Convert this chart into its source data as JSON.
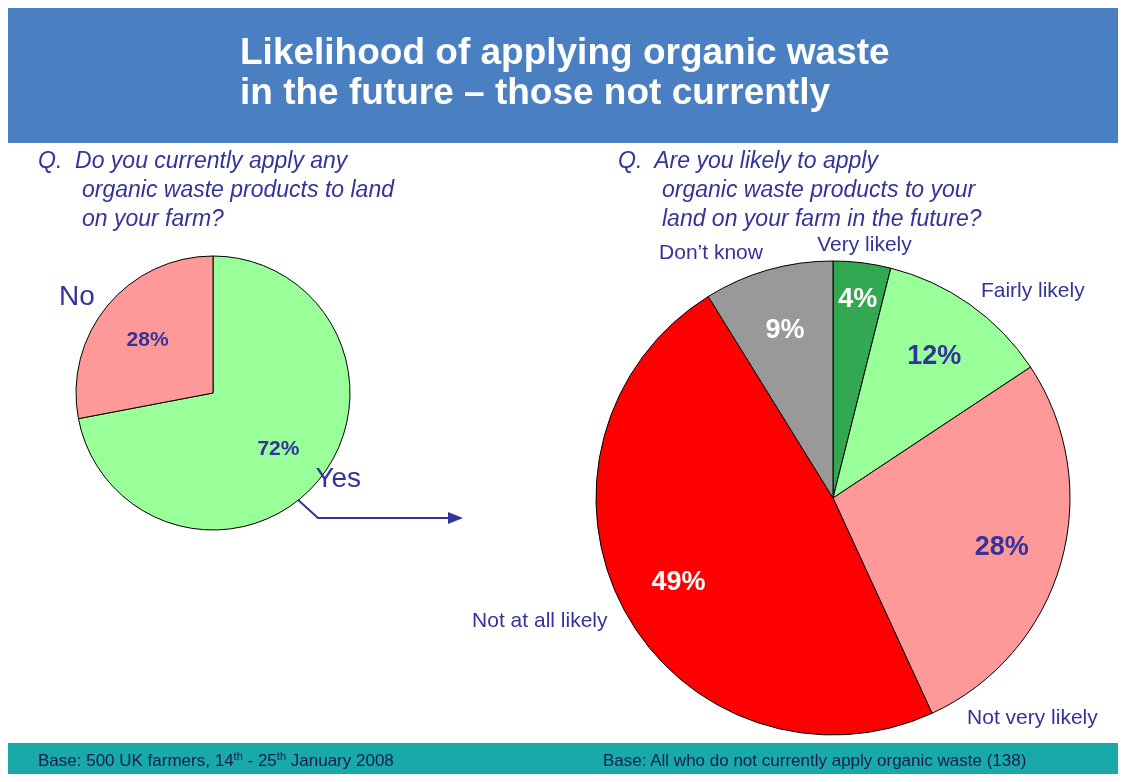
{
  "chart_data": [
    {
      "type": "pie",
      "title": "Likelihood of applying organic waste in the future – those not currently",
      "subtitle": "Q.  Do you currently apply any organic waste products to land on your farm?",
      "categories": [
        "Yes",
        "No"
      ],
      "values": [
        72,
        28
      ],
      "colors": [
        "#99ff99",
        "#ff9999"
      ],
      "value_labels": [
        "72%",
        "28%"
      ],
      "annotations": [
        "Base: 500 UK farmers, 14$^{th}$ - 25$^{th}$ January 2008"
      ]
    },
    {
      "type": "pie",
      "title": "Q.  Are you likely to apply organic waste products to your land on your farm in the future?",
      "categories": [
        "Very likely",
        "Fairly likely",
        "Not very likely",
        "Not at all likely",
        "Don’t know"
      ],
      "values": [
        4,
        12,
        28,
        49,
        9
      ],
      "colors": [
        "#33a853",
        "#99ff99",
        "#ff9999",
        "#ff0000",
        "#999999"
      ],
      "value_labels": [
        "4%",
        "12%",
        "28%",
        "49%",
        "9%"
      ],
      "annotations": [
        "Base: All who do not currently apply organic waste (138)"
      ]
    }
  ]
}
